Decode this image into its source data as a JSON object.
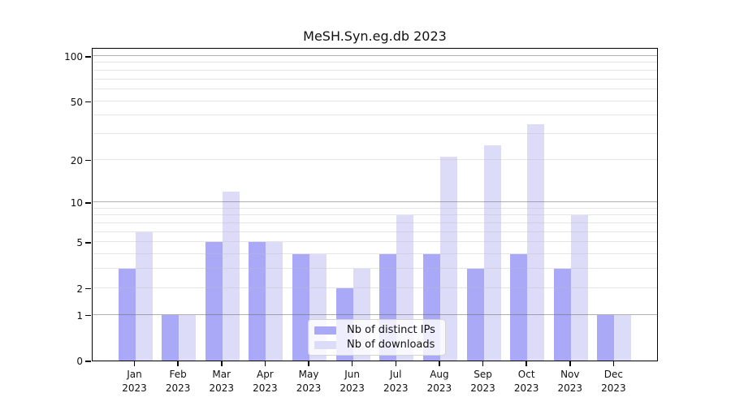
{
  "chart_data": {
    "type": "bar",
    "title": "MeSH.Syn.eg.db 2023",
    "categories": [
      {
        "month": "Jan",
        "year": "2023"
      },
      {
        "month": "Feb",
        "year": "2023"
      },
      {
        "month": "Mar",
        "year": "2023"
      },
      {
        "month": "Apr",
        "year": "2023"
      },
      {
        "month": "May",
        "year": "2023"
      },
      {
        "month": "Jun",
        "year": "2023"
      },
      {
        "month": "Jul",
        "year": "2023"
      },
      {
        "month": "Aug",
        "year": "2023"
      },
      {
        "month": "Sep",
        "year": "2023"
      },
      {
        "month": "Oct",
        "year": "2023"
      },
      {
        "month": "Nov",
        "year": "2023"
      },
      {
        "month": "Dec",
        "year": "2023"
      }
    ],
    "series": [
      {
        "name": "Nb of distinct IPs",
        "color": "#a9a9f8",
        "values": [
          3,
          1,
          5,
          5,
          4,
          2,
          4,
          4,
          3,
          4,
          3,
          1
        ]
      },
      {
        "name": "Nb of downloads",
        "color": "#dcdcf9",
        "values": [
          6,
          1,
          12,
          5,
          4,
          3,
          8,
          21,
          25,
          35,
          8,
          1
        ]
      }
    ],
    "yscale": "log1p",
    "ylim": [
      0,
      100
    ],
    "yticks": [
      0,
      1,
      2,
      5,
      10,
      20,
      50,
      100
    ],
    "gridlines": [
      1,
      2,
      3,
      4,
      5,
      6,
      7,
      8,
      9,
      10,
      20,
      30,
      40,
      50,
      60,
      70,
      80,
      90,
      100
    ],
    "major_gridlines": [
      1,
      10,
      100
    ],
    "xlabel": "",
    "ylabel": "",
    "grid": true,
    "legend_position": "lower center"
  }
}
